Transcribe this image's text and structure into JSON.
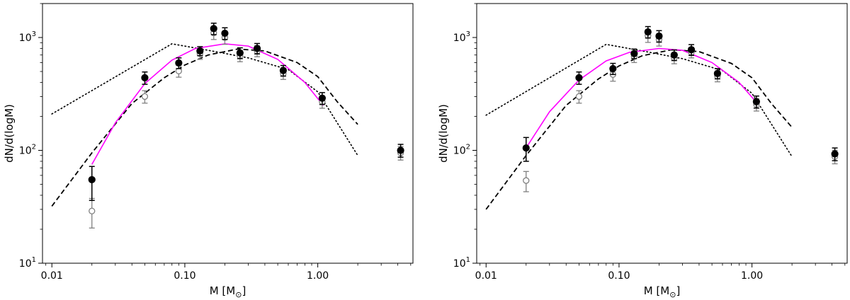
{
  "chart_data": [
    {
      "type": "scatter",
      "panel": "left",
      "xlabel": "M [M",
      "xlabel_sub": "⊙",
      "xlabel_end": "]",
      "ylabel": "dN/d(logM)",
      "xscale": "log",
      "yscale": "log",
      "xlim": [
        0.0085,
        5.2
      ],
      "ylim": [
        10,
        2000
      ],
      "xticks": [
        {
          "v": 0.01,
          "label": "0.01"
        },
        {
          "v": 0.1,
          "label": "0.10"
        },
        {
          "v": 1,
          "label": "1.00"
        }
      ],
      "yticks": [
        {
          "v": 10,
          "label": "10",
          "exp": "1"
        },
        {
          "v": 100,
          "label": "10",
          "exp": "2"
        },
        {
          "v": 1000,
          "label": "10",
          "exp": "3"
        }
      ],
      "series": [
        {
          "name": "filled points",
          "style": "filled",
          "color": "#000000",
          "points": [
            [
              0.02,
              55,
              36,
              72
            ],
            [
              0.05,
              440,
              385,
              495
            ],
            [
              0.09,
              595,
              530,
              660
            ],
            [
              0.13,
              760,
              690,
              830
            ],
            [
              0.165,
              1200,
              1060,
              1340
            ],
            [
              0.2,
              1090,
              960,
              1220
            ],
            [
              0.26,
              730,
              650,
              810
            ],
            [
              0.35,
              800,
              715,
              885
            ],
            [
              0.55,
              510,
              455,
              565
            ],
            [
              1.08,
              290,
              255,
              325
            ],
            [
              4.2,
              100,
              87,
              113
            ]
          ]
        },
        {
          "name": "open points",
          "style": "open",
          "color": "#808080",
          "points": [
            [
              0.02,
              29,
              20.5,
              37.5
            ],
            [
              0.05,
              300,
              262,
              338
            ],
            [
              0.09,
              505,
              445,
              565
            ],
            [
              0.13,
              720,
              640,
              800
            ],
            [
              0.165,
              1100,
              960,
              1240
            ],
            [
              0.2,
              1000,
              870,
              1130
            ],
            [
              0.26,
              690,
              610,
              770
            ],
            [
              0.35,
              760,
              675,
              845
            ],
            [
              0.55,
              480,
              425,
              535
            ],
            [
              1.08,
              270,
              236,
              304
            ],
            [
              4.2,
              95,
              82,
              108
            ]
          ]
        },
        {
          "name": "magenta fit",
          "style": "solid",
          "color": "#ff00ff",
          "points": [
            [
              0.02,
              75
            ],
            [
              0.03,
              175
            ],
            [
              0.05,
              390
            ],
            [
              0.08,
              630
            ],
            [
              0.12,
              800
            ],
            [
              0.2,
              880
            ],
            [
              0.3,
              840
            ],
            [
              0.5,
              640
            ],
            [
              0.8,
              400
            ],
            [
              1.1,
              250
            ]
          ]
        },
        {
          "name": "dashed model",
          "style": "dashed",
          "color": "#000000",
          "points": [
            [
              0.01,
              32
            ],
            [
              0.02,
              95
            ],
            [
              0.04,
              260
            ],
            [
              0.07,
              440
            ],
            [
              0.1,
              570
            ],
            [
              0.15,
              700
            ],
            [
              0.25,
              790
            ],
            [
              0.4,
              760
            ],
            [
              0.7,
              600
            ],
            [
              1,
              450
            ],
            [
              1.4,
              270
            ],
            [
              2,
              170
            ]
          ]
        },
        {
          "name": "dotted model",
          "style": "dotted",
          "color": "#000000",
          "points": [
            [
              0.01,
              210
            ],
            [
              0.08,
              880
            ],
            [
              0.15,
              770
            ],
            [
              0.3,
              660
            ],
            [
              0.6,
              520
            ],
            [
              1,
              330
            ],
            [
              2,
              90
            ]
          ]
        }
      ]
    },
    {
      "type": "scatter",
      "panel": "right",
      "xlabel": "M [M",
      "xlabel_sub": "⊙",
      "xlabel_end": "]",
      "ylabel": "dN/d(logM)",
      "xscale": "log",
      "yscale": "log",
      "xlim": [
        0.0085,
        5.2
      ],
      "ylim": [
        10,
        2000
      ],
      "xticks": [
        {
          "v": 0.01,
          "label": "0.01"
        },
        {
          "v": 0.1,
          "label": "0.10"
        },
        {
          "v": 1,
          "label": "1.00"
        }
      ],
      "yticks": [
        {
          "v": 10,
          "label": "10",
          "exp": "1"
        },
        {
          "v": 100,
          "label": "10",
          "exp": "2"
        },
        {
          "v": 1000,
          "label": "10",
          "exp": "3"
        }
      ],
      "series": [
        {
          "name": "filled points",
          "style": "filled",
          "color": "#000000",
          "points": [
            [
              0.02,
              105,
              80,
              130
            ],
            [
              0.05,
              440,
              385,
              495
            ],
            [
              0.09,
              530,
              470,
              590
            ],
            [
              0.13,
              720,
              650,
              790
            ],
            [
              0.165,
              1120,
              990,
              1250
            ],
            [
              0.2,
              1030,
              910,
              1150
            ],
            [
              0.26,
              700,
              625,
              775
            ],
            [
              0.35,
              780,
              695,
              865
            ],
            [
              0.55,
              480,
              430,
              530
            ],
            [
              1.08,
              270,
              237,
              303
            ],
            [
              4.2,
              93,
              81,
              105
            ]
          ]
        },
        {
          "name": "open points",
          "style": "open",
          "color": "#808080",
          "points": [
            [
              0.02,
              54,
              43,
              65
            ],
            [
              0.05,
              300,
              262,
              338
            ],
            [
              0.09,
              470,
              410,
              530
            ],
            [
              0.13,
              680,
              600,
              760
            ],
            [
              0.165,
              1040,
              905,
              1175
            ],
            [
              0.2,
              960,
              840,
              1080
            ],
            [
              0.26,
              660,
              585,
              735
            ],
            [
              0.35,
              740,
              660,
              820
            ],
            [
              0.55,
              455,
              405,
              505
            ],
            [
              1.08,
              255,
              223,
              287
            ],
            [
              4.2,
              88,
              76,
              100
            ]
          ]
        },
        {
          "name": "magenta fit",
          "style": "solid",
          "color": "#ff00ff",
          "points": [
            [
              0.02,
              105
            ],
            [
              0.03,
              220
            ],
            [
              0.05,
              420
            ],
            [
              0.08,
              620
            ],
            [
              0.12,
              740
            ],
            [
              0.2,
              800
            ],
            [
              0.3,
              770
            ],
            [
              0.5,
              600
            ],
            [
              0.8,
              400
            ],
            [
              1.1,
              260
            ]
          ]
        },
        {
          "name": "dashed model",
          "style": "dashed",
          "color": "#000000",
          "points": [
            [
              0.01,
              30
            ],
            [
              0.02,
              90
            ],
            [
              0.04,
              250
            ],
            [
              0.07,
              430
            ],
            [
              0.1,
              560
            ],
            [
              0.15,
              690
            ],
            [
              0.25,
              780
            ],
            [
              0.4,
              750
            ],
            [
              0.7,
              590
            ],
            [
              1,
              440
            ],
            [
              1.4,
              260
            ],
            [
              2,
              160
            ]
          ]
        },
        {
          "name": "dotted model",
          "style": "dotted",
          "color": "#000000",
          "points": [
            [
              0.01,
              205
            ],
            [
              0.08,
              870
            ],
            [
              0.15,
              760
            ],
            [
              0.3,
              650
            ],
            [
              0.6,
              510
            ],
            [
              1,
              320
            ],
            [
              2,
              88
            ]
          ]
        }
      ]
    }
  ]
}
